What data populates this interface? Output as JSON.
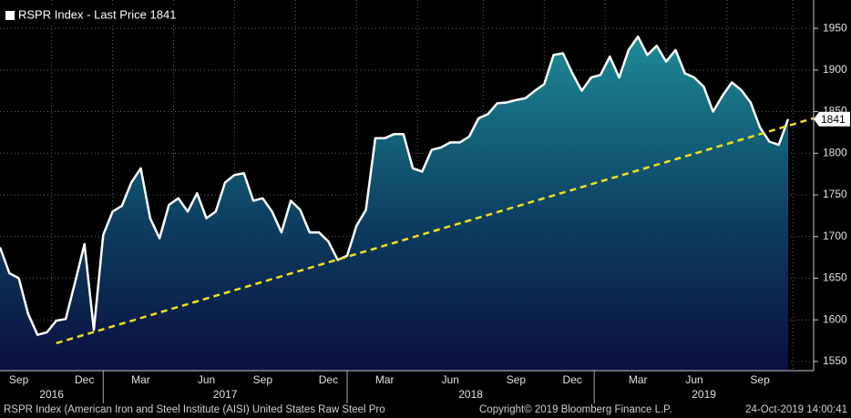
{
  "chart_data": {
    "type": "line",
    "legend": "RSPR Index - Last Price 1841",
    "categories": [
      null,
      null,
      "Sep",
      null,
      null,
      null,
      null,
      null,
      null,
      "Dec",
      null,
      null,
      null,
      null,
      null,
      "Mar",
      null,
      null,
      null,
      null,
      null,
      null,
      "Jun",
      null,
      null,
      null,
      null,
      null,
      "Sep",
      null,
      null,
      null,
      null,
      null,
      null,
      "Dec",
      null,
      null,
      null,
      null,
      null,
      "Mar",
      null,
      null,
      null,
      null,
      null,
      null,
      "Jun",
      null,
      null,
      null,
      null,
      null,
      null,
      "Sep",
      null,
      null,
      null,
      null,
      null,
      "Dec",
      null,
      null,
      null,
      null,
      null,
      null,
      "Mar",
      null,
      null,
      null,
      null,
      null,
      "Jun",
      null,
      null,
      null,
      null,
      null,
      null,
      "Sep",
      null,
      null,
      null
    ],
    "years": [
      "2016",
      "2017",
      "2018",
      "2019"
    ],
    "series": [
      {
        "name": "RSPR Index",
        "color": "#ffffff",
        "values": [
          1687,
          1656,
          1650,
          1607,
          1582,
          1585,
          1599,
          1601,
          1645,
          1691,
          1588,
          1702,
          1730,
          1737,
          1765,
          1782,
          1722,
          1698,
          1738,
          1746,
          1730,
          1752,
          1722,
          1730,
          1765,
          1774,
          1776,
          1743,
          1746,
          1730,
          1705,
          1743,
          1732,
          1705,
          1705,
          1694,
          1672,
          1677,
          1713,
          1732,
          1818,
          1818,
          1823,
          1823,
          1782,
          1778,
          1804,
          1807,
          1813,
          1813,
          1820,
          1842,
          1847,
          1860,
          1861,
          1864,
          1866,
          1875,
          1883,
          1918,
          1920,
          1896,
          1875,
          1891,
          1894,
          1916,
          1891,
          1924,
          1940,
          1918,
          1929,
          1910,
          1924,
          1896,
          1891,
          1880,
          1850,
          1869,
          1885,
          1876,
          1861,
          1831,
          1814,
          1810,
          1841
        ]
      }
    ],
    "trend": {
      "color": "#f2e21a",
      "values": [
        null,
        null,
        null,
        null,
        null,
        null,
        1572,
        null,
        null,
        null,
        null,
        null,
        null,
        null,
        null,
        null,
        null,
        null,
        null,
        null,
        null,
        null,
        null,
        null,
        null,
        null,
        null,
        null,
        null,
        null,
        null,
        null,
        null,
        null,
        null,
        null,
        null,
        null,
        null,
        null,
        null,
        null,
        null,
        null,
        null,
        null,
        null,
        null,
        null,
        null,
        null,
        null,
        null,
        null,
        null,
        null,
        null,
        null,
        null,
        null,
        null,
        null,
        null,
        null,
        null,
        null,
        null,
        null,
        null,
        null,
        null,
        null,
        null,
        null,
        null,
        null,
        null,
        null,
        null,
        null,
        null,
        null,
        null,
        null,
        1833
      ]
    },
    "ylim": [
      1539,
      1984
    ],
    "yticks": [
      1550,
      1600,
      1650,
      1700,
      1750,
      1800,
      1850,
      1900,
      1950
    ],
    "grid": true,
    "footer_left": "RSPR Index (American Iron and Steel Institute (AISI) United States Raw Steel Pro",
    "footer_center": "Copyright© 2019 Bloomberg Finance L.P.",
    "footer_right": "24-Oct-2019 14:00:41"
  }
}
